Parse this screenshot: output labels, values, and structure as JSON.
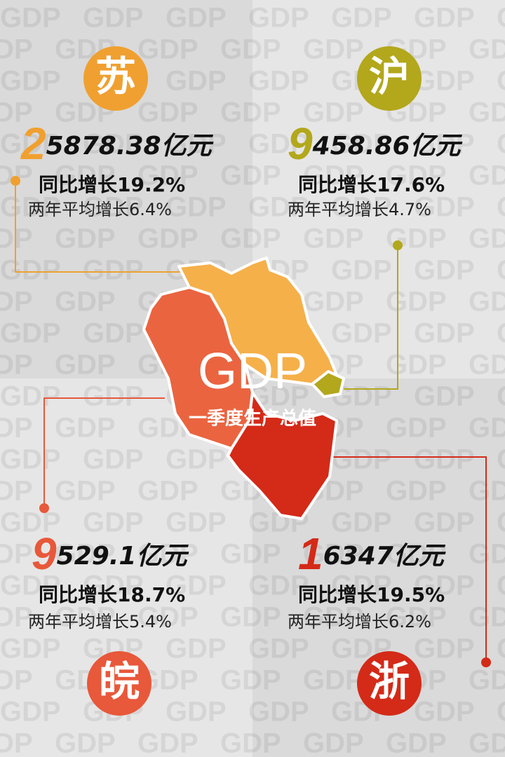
{
  "watermark": "GDP",
  "center": {
    "title": "GDP",
    "subtitle": "一季度生产总值"
  },
  "regions": [
    {
      "name": "苏",
      "value_lead": "2",
      "value_rest": "5878.38亿元",
      "yoy": "同比增长19.2%",
      "avg": "两年平均增长6.4%",
      "color": "#f0a030"
    },
    {
      "name": "沪",
      "value_lead": "9",
      "value_rest": "458.86亿元",
      "yoy": "同比增长17.6%",
      "avg": "两年平均增长4.7%",
      "color": "#b3a71c"
    },
    {
      "name": "皖",
      "value_lead": "9",
      "value_rest": "529.1亿元",
      "yoy": "同比增长18.7%",
      "avg": "两年平均增长5.4%",
      "color": "#e8583a"
    },
    {
      "name": "浙",
      "value_lead": "1",
      "value_rest": "6347亿元",
      "yoy": "同比增长19.5%",
      "avg": "两年平均增长6.2%",
      "color": "#d42a18"
    }
  ]
}
